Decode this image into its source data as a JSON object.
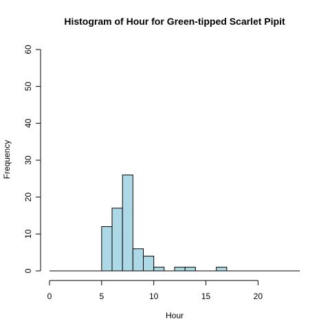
{
  "chart_data": {
    "type": "histogram",
    "title": "Histogram of Hour for Green-tipped Scarlet Pipit",
    "xlabel": "Hour",
    "ylabel": "Frequency",
    "xlim": [
      0,
      24
    ],
    "ylim": [
      0,
      60
    ],
    "x_ticks": [
      0,
      5,
      10,
      15,
      20
    ],
    "y_ticks": [
      0,
      10,
      20,
      30,
      40,
      50,
      60
    ],
    "bin_width": 1,
    "bins": [
      {
        "start": 5,
        "end": 6,
        "count": 12
      },
      {
        "start": 6,
        "end": 7,
        "count": 17
      },
      {
        "start": 7,
        "end": 8,
        "count": 26
      },
      {
        "start": 8,
        "end": 9,
        "count": 6
      },
      {
        "start": 9,
        "end": 10,
        "count": 4
      },
      {
        "start": 10,
        "end": 11,
        "count": 1
      },
      {
        "start": 11,
        "end": 12,
        "count": 0
      },
      {
        "start": 12,
        "end": 13,
        "count": 1
      },
      {
        "start": 13,
        "end": 14,
        "count": 1
      },
      {
        "start": 14,
        "end": 15,
        "count": 0
      },
      {
        "start": 15,
        "end": 16,
        "count": 0
      },
      {
        "start": 16,
        "end": 17,
        "count": 1
      }
    ],
    "bar_fill": "#add8e6",
    "bar_stroke": "#000000",
    "grid": false,
    "legend": "none"
  }
}
